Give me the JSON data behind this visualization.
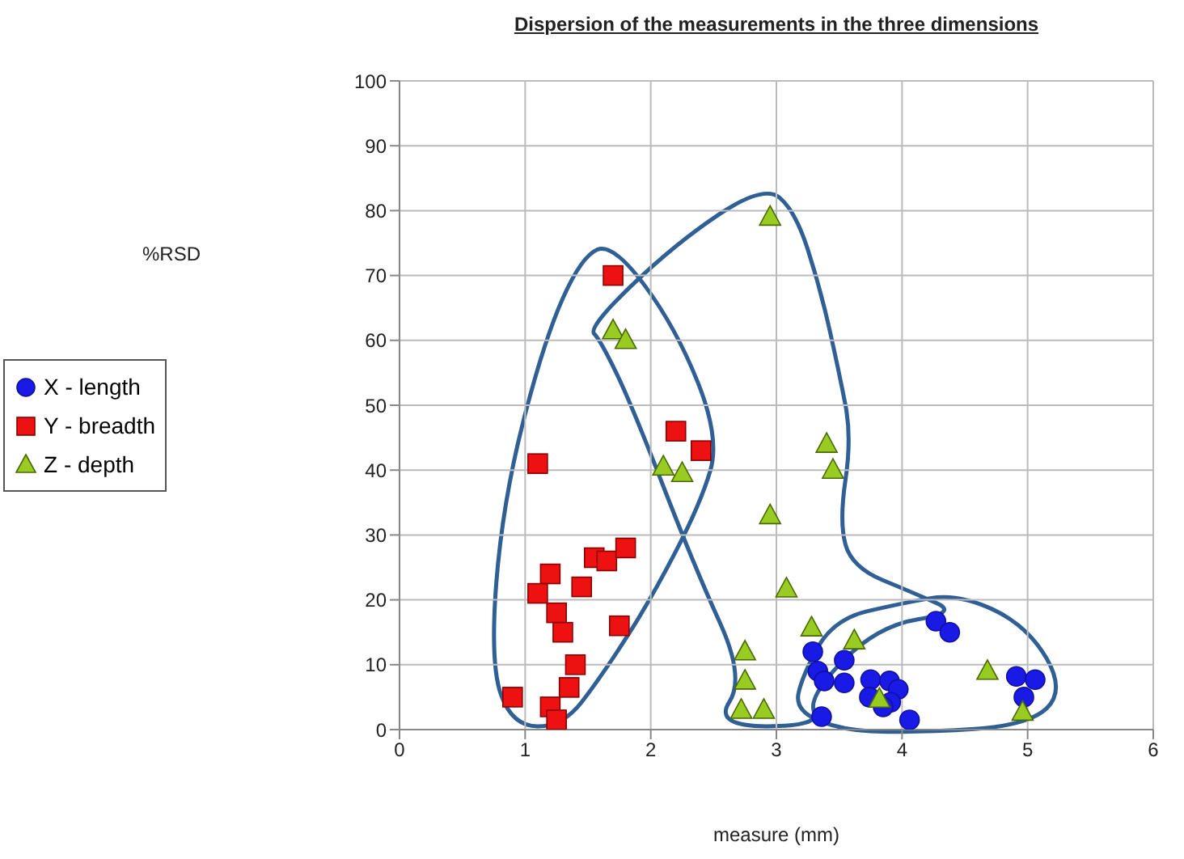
{
  "chart_data": {
    "type": "scatter",
    "title": "Dispersion of the measurements in the three dimensions",
    "xlabel": "measure (mm)",
    "annotations": [
      "%RSD"
    ],
    "xlim": [
      0,
      6
    ],
    "xticks": [
      0,
      1,
      2,
      3,
      4,
      5,
      6
    ],
    "ylim": [
      0,
      100
    ],
    "yticks": [
      0,
      10,
      20,
      30,
      40,
      50,
      60,
      70,
      80,
      90,
      100
    ],
    "grid": true,
    "legend": "left",
    "series": [
      {
        "name": "X - length",
        "color": "#1a1ae6",
        "marker": "circle",
        "x": [
          3.29,
          3.54,
          3.33,
          3.38,
          3.54,
          3.75,
          3.9,
          3.97,
          3.74,
          3.91,
          3.85,
          3.36,
          4.06,
          4.27,
          4.38,
          4.91,
          5.06,
          4.97
        ],
        "values": [
          12,
          10.7,
          9,
          7.5,
          7.2,
          7.7,
          7.5,
          6.2,
          5,
          4.2,
          3.5,
          2,
          1.5,
          16.7,
          15,
          8.2,
          7.7,
          5
        ]
      },
      {
        "name": "Y - breadth",
        "color": "#ee1111",
        "marker": "square",
        "x": [
          1.7,
          1.1,
          2.2,
          2.4,
          1.55,
          1.65,
          1.8,
          1.2,
          1.1,
          1.45,
          1.25,
          1.3,
          1.75,
          1.4,
          1.35,
          0.9,
          1.2,
          1.25
        ],
        "values": [
          70,
          41,
          46,
          43,
          26.5,
          26,
          28,
          24,
          21,
          22,
          18,
          15,
          16,
          10,
          6.5,
          5,
          3.5,
          1.5
        ]
      },
      {
        "name": "Z - depth",
        "color": "#99cc22",
        "marker": "triangle",
        "x": [
          2.95,
          1.7,
          1.8,
          2.1,
          2.25,
          3.4,
          3.45,
          2.95,
          3.08,
          2.75,
          2.75,
          2.72,
          2.9,
          3.28,
          3.62,
          3.82,
          4.68,
          4.96
        ],
        "values": [
          79,
          61.5,
          60,
          40.5,
          39.5,
          44,
          40,
          33,
          21.7,
          12,
          7.5,
          3,
          3,
          15.7,
          13.7,
          4.7,
          9,
          2.7
        ]
      }
    ]
  }
}
